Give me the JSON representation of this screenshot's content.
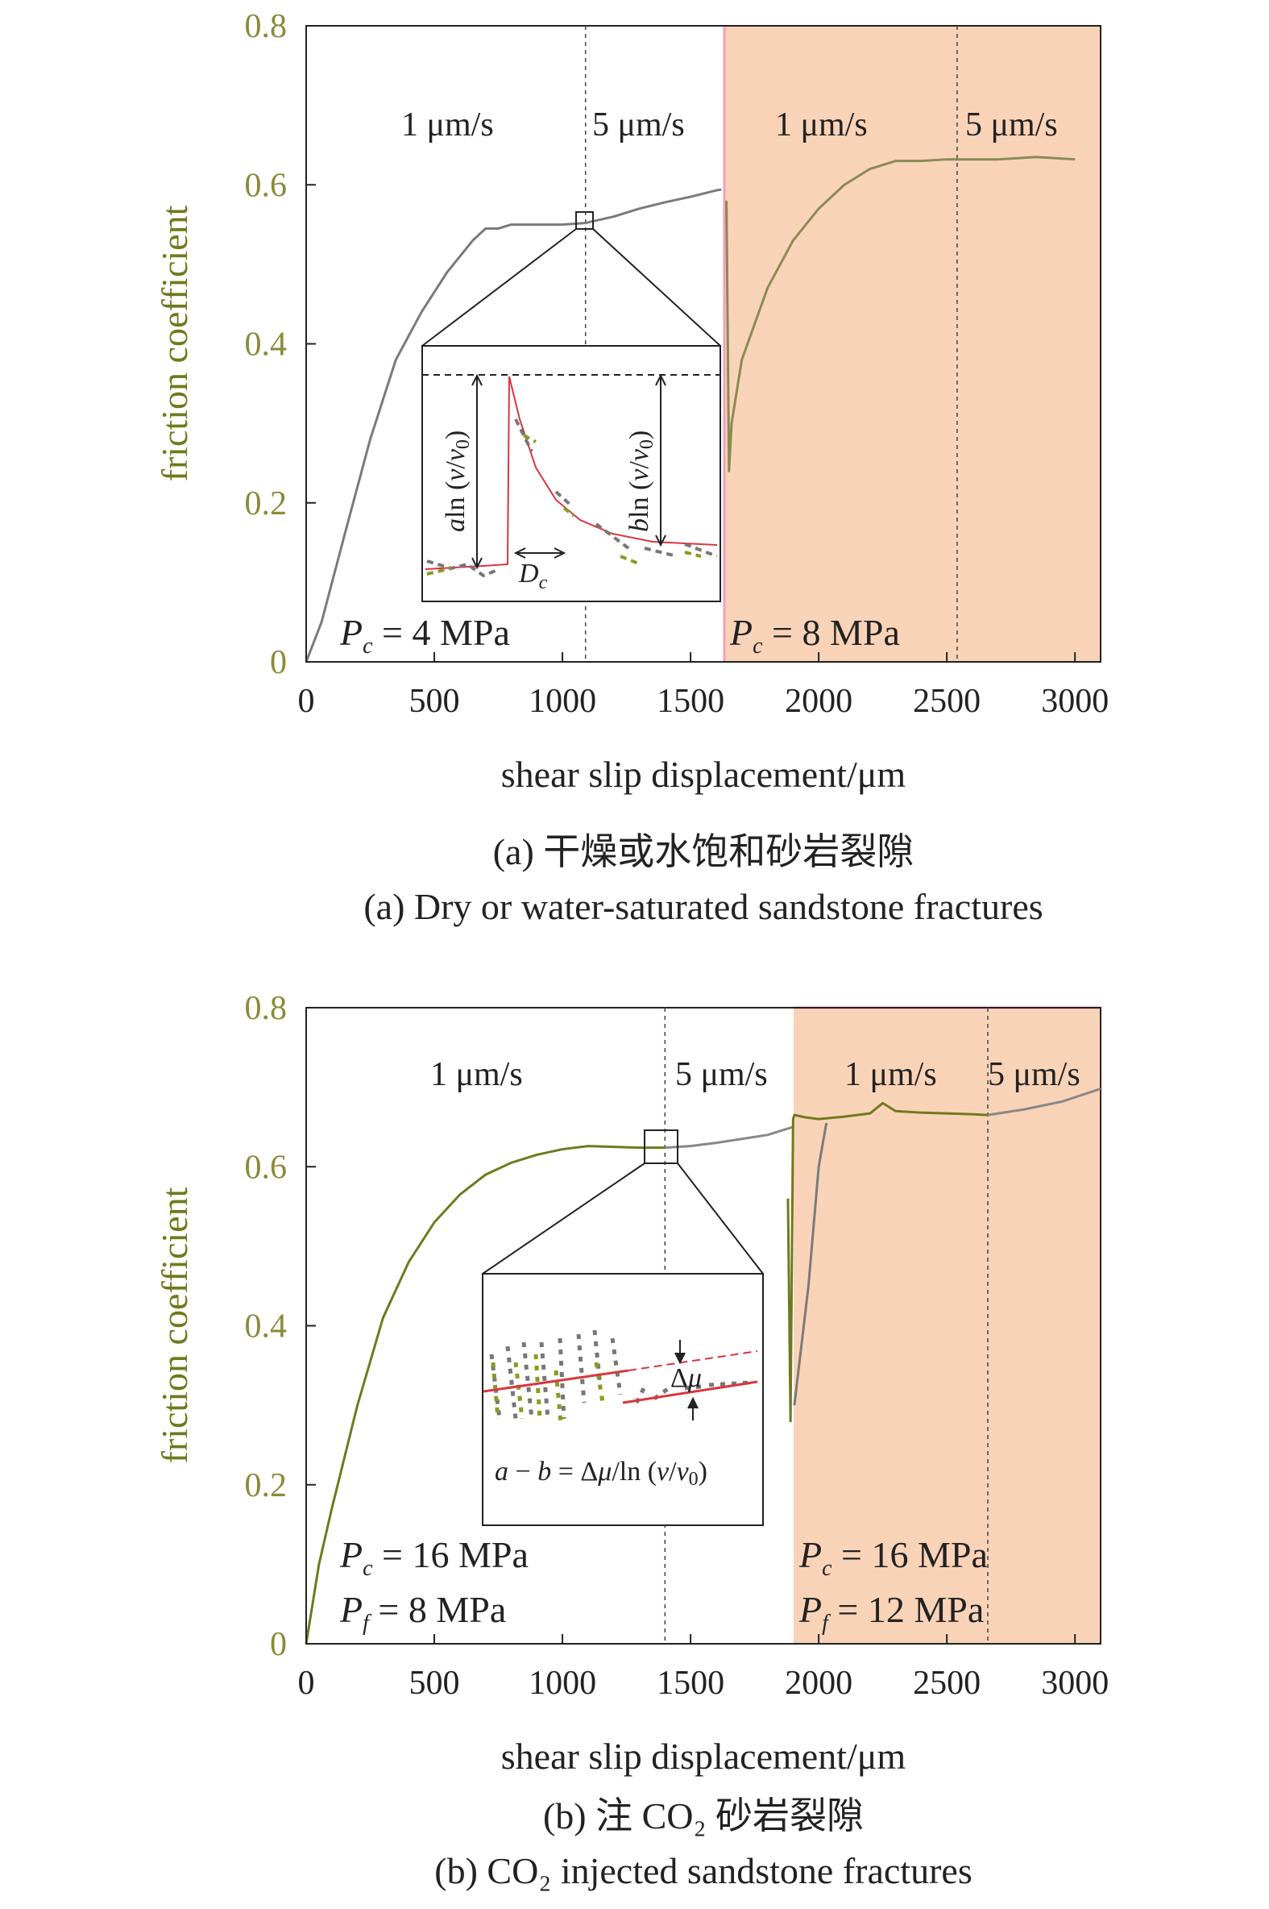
{
  "chart_data": [
    {
      "type": "line",
      "panel": "a",
      "xlabel": "shear slip displacement/μm",
      "ylabel": "friction coefficient",
      "xlim": [
        0,
        3100
      ],
      "ylim": [
        0,
        0.8
      ],
      "xticks": [
        "0",
        "500",
        "1000",
        "1500",
        "2000",
        "2500",
        "3000"
      ],
      "yticks": [
        "0",
        "0.2",
        "0.4",
        "0.6",
        "0.8"
      ],
      "speed_labels": [
        "1 μm/s",
        "5 μm/s",
        "1 μm/s",
        "5 μm/s"
      ],
      "pressure_left": "P_c = 4 MPa",
      "pressure_right": "P_c = 8 MPa",
      "shaded_from": 1640,
      "vlines": [
        1090,
        2540
      ],
      "series": [
        {
          "color": "#7a7a7a",
          "x": [
            0,
            60,
            150,
            250,
            350,
            450,
            550,
            650,
            700,
            750,
            800,
            900,
            1000,
            1090,
            1200,
            1300,
            1400,
            1500,
            1600,
            1620
          ],
          "y": [
            0.0,
            0.05,
            0.16,
            0.28,
            0.38,
            0.44,
            0.49,
            0.53,
            0.545,
            0.545,
            0.55,
            0.55,
            0.55,
            0.552,
            0.56,
            0.57,
            0.578,
            0.585,
            0.593,
            0.594
          ]
        },
        {
          "color": "#8a8a55",
          "x": [
            1640,
            1650,
            1660,
            1700,
            1800,
            1900,
            2000,
            2100,
            2200,
            2300,
            2400,
            2500,
            2540,
            2700,
            2850,
            3000
          ],
          "y": [
            0.58,
            0.24,
            0.3,
            0.38,
            0.47,
            0.53,
            0.57,
            0.6,
            0.62,
            0.63,
            0.63,
            0.632,
            0.632,
            0.632,
            0.635,
            0.632
          ]
        }
      ],
      "inset_labels": [
        "aln (v/v0)",
        "bln (v/v0)",
        "Dc"
      ]
    },
    {
      "type": "line",
      "panel": "b",
      "xlabel": "shear slip displacement/μm",
      "ylabel": "friction coefficient",
      "xlim": [
        0,
        3100
      ],
      "ylim": [
        0,
        0.8
      ],
      "xticks": [
        "0",
        "500",
        "1000",
        "1500",
        "2000",
        "2500",
        "3000"
      ],
      "yticks": [
        "0",
        "0.2",
        "0.4",
        "0.6",
        "0.8"
      ],
      "speed_labels": [
        "1 μm/s",
        "5 μm/s",
        "1 μm/s",
        "5 μm/s"
      ],
      "pressure_left": [
        "P_c = 16 MPa",
        "P_f = 8 MPa"
      ],
      "pressure_right": [
        "P_c = 16 MPa",
        "P_f = 12 MPa"
      ],
      "shaded_from": 1900,
      "vlines": [
        1400,
        2660
      ],
      "series": [
        {
          "color": "#6f7a1e",
          "x": [
            0,
            50,
            100,
            200,
            300,
            400,
            500,
            600,
            700,
            800,
            900,
            1000,
            1100,
            1200,
            1300,
            1400
          ],
          "y": [
            0.0,
            0.1,
            0.17,
            0.3,
            0.41,
            0.48,
            0.53,
            0.565,
            0.59,
            0.605,
            0.615,
            0.622,
            0.626,
            0.625,
            0.624,
            0.624
          ]
        },
        {
          "color": "#888888",
          "x": [
            1400,
            1500,
            1600,
            1700,
            1800,
            1900
          ],
          "y": [
            0.624,
            0.626,
            0.63,
            0.635,
            0.64,
            0.65
          ]
        },
        {
          "color": "#6f7a1e",
          "x": [
            1880,
            1890,
            1900,
            1905,
            1950,
            2000,
            2100,
            2200,
            2250,
            2300,
            2400,
            2500,
            2600,
            2660
          ],
          "y": [
            0.56,
            0.28,
            0.66,
            0.665,
            0.662,
            0.66,
            0.663,
            0.667,
            0.68,
            0.67,
            0.668,
            0.667,
            0.666,
            0.665
          ]
        },
        {
          "color": "#7a7a7a",
          "x": [
            1905,
            1960,
            2000,
            2030
          ],
          "y": [
            0.3,
            0.45,
            0.6,
            0.655
          ]
        },
        {
          "color": "#888888",
          "x": [
            2660,
            2800,
            2950,
            3100
          ],
          "y": [
            0.665,
            0.672,
            0.682,
            0.698
          ]
        }
      ],
      "inset_labels": [
        "Δμ",
        "a − b = Δμ/ln (v/v0)"
      ]
    }
  ],
  "captions": {
    "a_cn": "(a) 干燥或水饱和砂岩裂隙",
    "a_en": "(a) Dry or water-saturated sandstone fractures",
    "b_cn": "(b) 注 CO₂ 砂岩裂隙",
    "b_en": "(b) CO₂ injected sandstone fractures"
  },
  "colors": {
    "shade": "#f9d3b8",
    "shade_edge": "#f4a0b8",
    "curve_gray": "#7a7a7a",
    "curve_olive": "#6f7a1e",
    "red": "#d9363e"
  }
}
